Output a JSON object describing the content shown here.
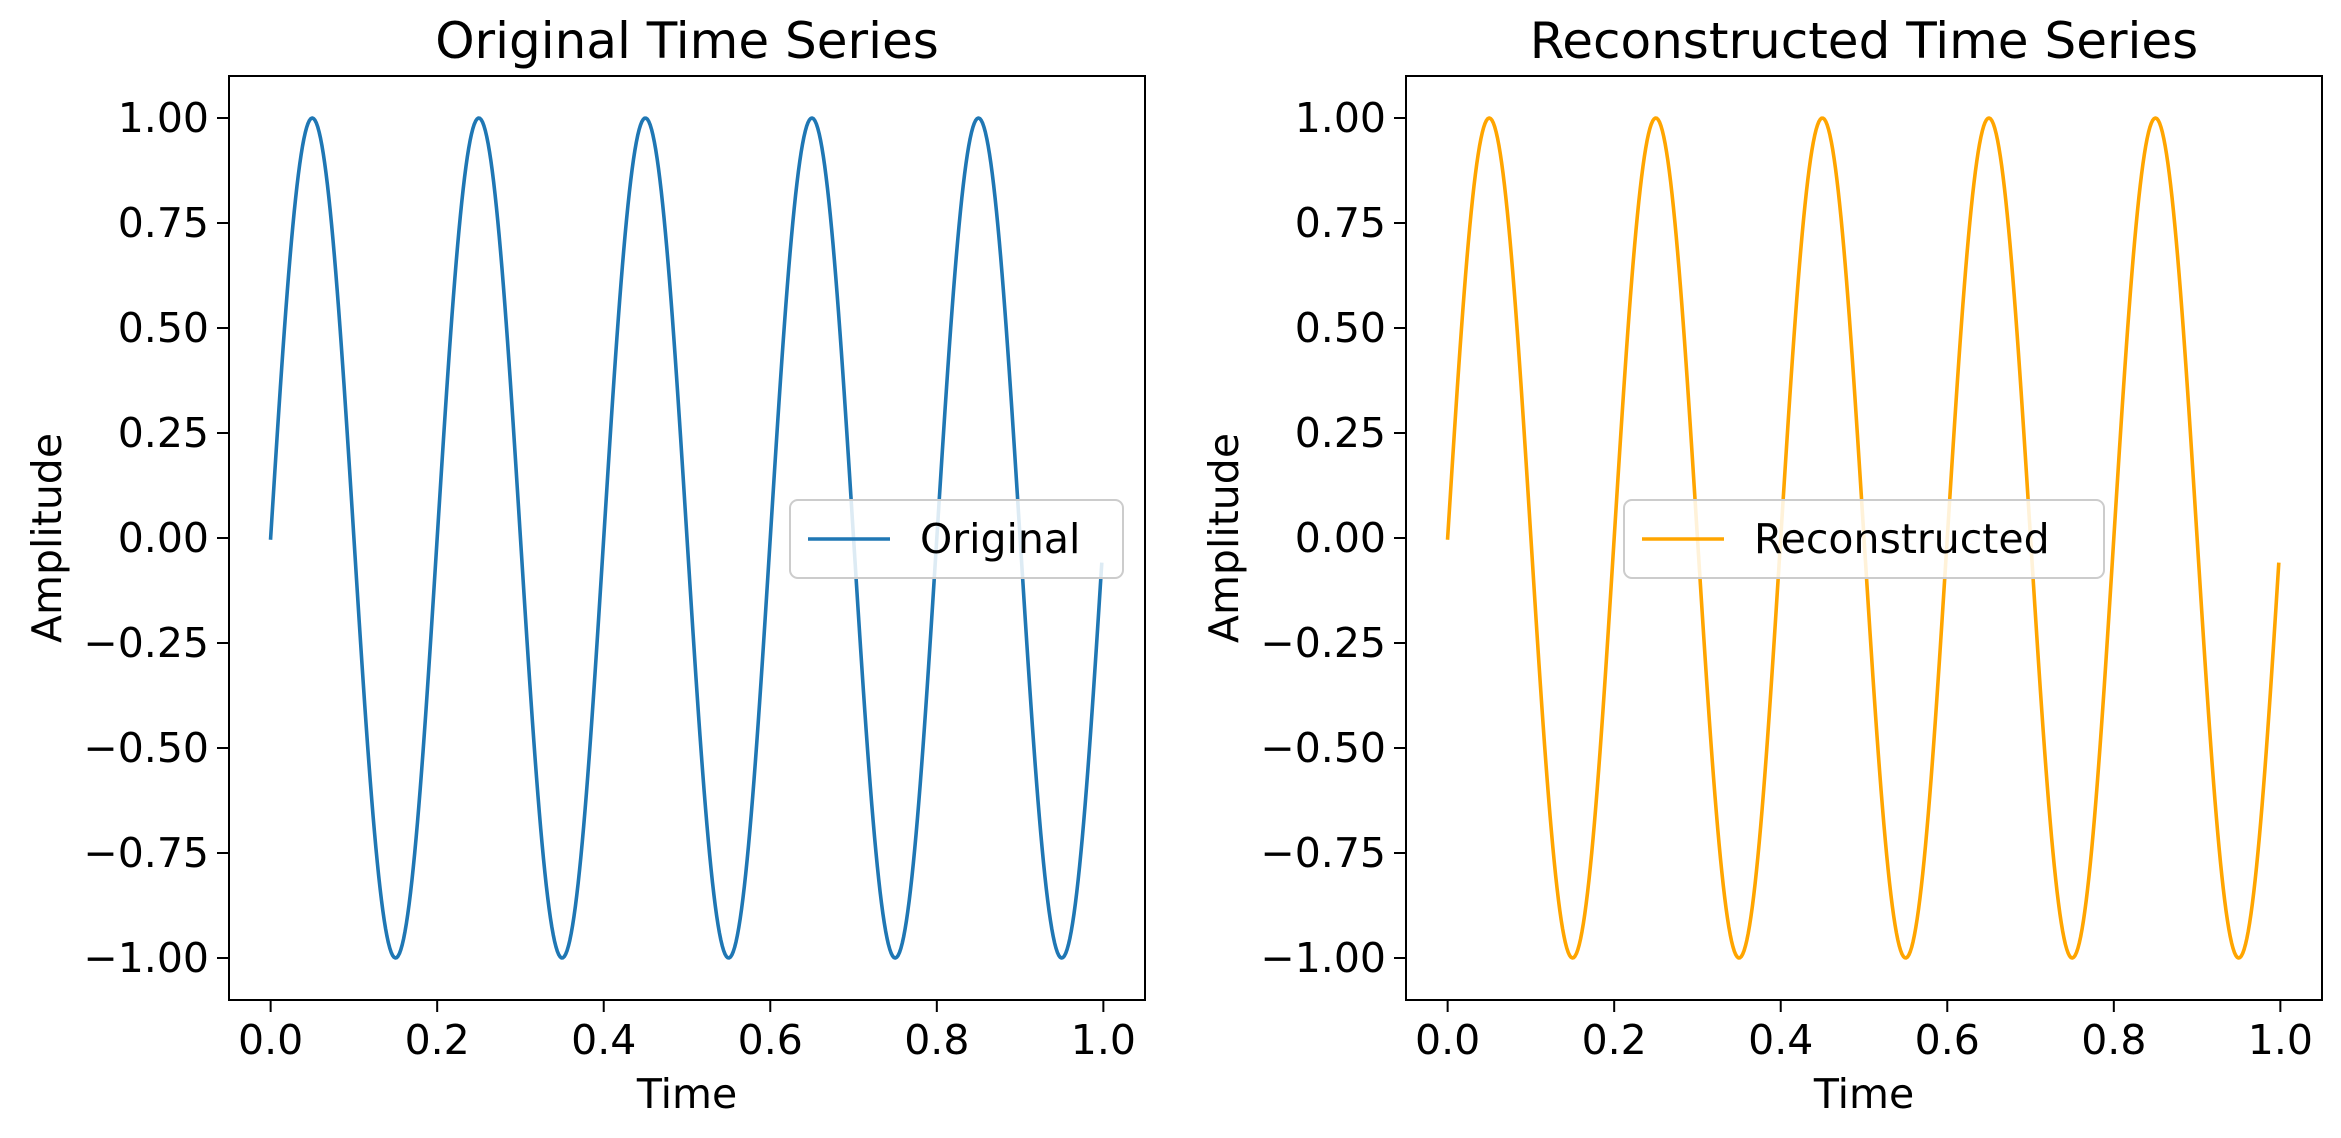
{
  "chart_data": [
    {
      "type": "line",
      "title": "Original Time Series",
      "xlabel": "Time",
      "ylabel": "Amplitude",
      "xlim": [
        -0.05,
        1.05
      ],
      "ylim": [
        -1.1,
        1.1
      ],
      "x_ticks": [
        {
          "value": 0.0,
          "label": "0.0"
        },
        {
          "value": 0.2,
          "label": "0.2"
        },
        {
          "value": 0.4,
          "label": "0.4"
        },
        {
          "value": 0.6,
          "label": "0.6"
        },
        {
          "value": 0.8,
          "label": "0.8"
        },
        {
          "value": 1.0,
          "label": "1.0"
        }
      ],
      "y_ticks": [
        {
          "value": 1.0,
          "label": "1.00"
        },
        {
          "value": 0.75,
          "label": "0.75"
        },
        {
          "value": 0.5,
          "label": "0.50"
        },
        {
          "value": 0.25,
          "label": "0.25"
        },
        {
          "value": 0.0,
          "label": "0.00"
        },
        {
          "value": -0.25,
          "label": "−0.25"
        },
        {
          "value": -0.5,
          "label": "−0.50"
        },
        {
          "value": -0.75,
          "label": "−0.75"
        },
        {
          "value": -1.0,
          "label": "−1.00"
        }
      ],
      "grid": false,
      "legend": {
        "position": "center-right"
      },
      "series": [
        {
          "name": "Original",
          "color": "#1f77b4",
          "function": "sin(2*pi*5*t)",
          "x": [
            0.0,
            0.025,
            0.05,
            0.075,
            0.1,
            0.125,
            0.15,
            0.175,
            0.2,
            0.225,
            0.25,
            0.275,
            0.3,
            0.325,
            0.35,
            0.375,
            0.4,
            0.425,
            0.45,
            0.475,
            0.5,
            0.525,
            0.55,
            0.575,
            0.6,
            0.625,
            0.65,
            0.675,
            0.7,
            0.725,
            0.75,
            0.775,
            0.8,
            0.825,
            0.85,
            0.875,
            0.9,
            0.925,
            0.95,
            0.975,
            0.998
          ],
          "values": [
            0.0,
            0.707,
            1.0,
            0.707,
            0.0,
            -0.707,
            -1.0,
            -0.707,
            0.0,
            0.707,
            1.0,
            0.707,
            0.0,
            -0.707,
            -1.0,
            -0.707,
            0.0,
            0.707,
            1.0,
            0.707,
            0.0,
            -0.707,
            -1.0,
            -0.707,
            0.0,
            0.707,
            1.0,
            0.707,
            0.0,
            -0.707,
            -1.0,
            -0.707,
            0.0,
            0.707,
            1.0,
            0.707,
            0.0,
            -0.707,
            -1.0,
            -0.707,
            -0.06
          ]
        }
      ]
    },
    {
      "type": "line",
      "title": "Reconstructed Time Series",
      "xlabel": "Time",
      "ylabel": "Amplitude",
      "xlim": [
        -0.05,
        1.05
      ],
      "ylim": [
        -1.1,
        1.1
      ],
      "x_ticks": [
        {
          "value": 0.0,
          "label": "0.0"
        },
        {
          "value": 0.2,
          "label": "0.2"
        },
        {
          "value": 0.4,
          "label": "0.4"
        },
        {
          "value": 0.6,
          "label": "0.6"
        },
        {
          "value": 0.8,
          "label": "0.8"
        },
        {
          "value": 1.0,
          "label": "1.0"
        }
      ],
      "y_ticks": [
        {
          "value": 1.0,
          "label": "1.00"
        },
        {
          "value": 0.75,
          "label": "0.75"
        },
        {
          "value": 0.5,
          "label": "0.50"
        },
        {
          "value": 0.25,
          "label": "0.25"
        },
        {
          "value": 0.0,
          "label": "0.00"
        },
        {
          "value": -0.25,
          "label": "−0.25"
        },
        {
          "value": -0.5,
          "label": "−0.50"
        },
        {
          "value": -0.75,
          "label": "−0.75"
        },
        {
          "value": -1.0,
          "label": "−1.00"
        }
      ],
      "grid": false,
      "legend": {
        "position": "center"
      },
      "series": [
        {
          "name": "Reconstructed",
          "color": "#ffa500",
          "function": "sin(2*pi*5*t)",
          "x": [
            0.0,
            0.025,
            0.05,
            0.075,
            0.1,
            0.125,
            0.15,
            0.175,
            0.2,
            0.225,
            0.25,
            0.275,
            0.3,
            0.325,
            0.35,
            0.375,
            0.4,
            0.425,
            0.45,
            0.475,
            0.5,
            0.525,
            0.55,
            0.575,
            0.6,
            0.625,
            0.65,
            0.675,
            0.7,
            0.725,
            0.75,
            0.775,
            0.8,
            0.825,
            0.85,
            0.875,
            0.9,
            0.925,
            0.95,
            0.975,
            0.998
          ],
          "values": [
            0.0,
            0.707,
            1.0,
            0.707,
            0.0,
            -0.707,
            -1.0,
            -0.707,
            0.0,
            0.707,
            1.0,
            0.707,
            0.0,
            -0.707,
            -1.0,
            -0.707,
            0.0,
            0.707,
            1.0,
            0.707,
            0.0,
            -0.707,
            -1.0,
            -0.707,
            0.0,
            0.707,
            1.0,
            0.707,
            0.0,
            -0.707,
            -1.0,
            -0.707,
            0.0,
            0.707,
            1.0,
            0.707,
            0.0,
            -0.707,
            -1.0,
            -0.707,
            -0.06
          ]
        }
      ]
    }
  ]
}
